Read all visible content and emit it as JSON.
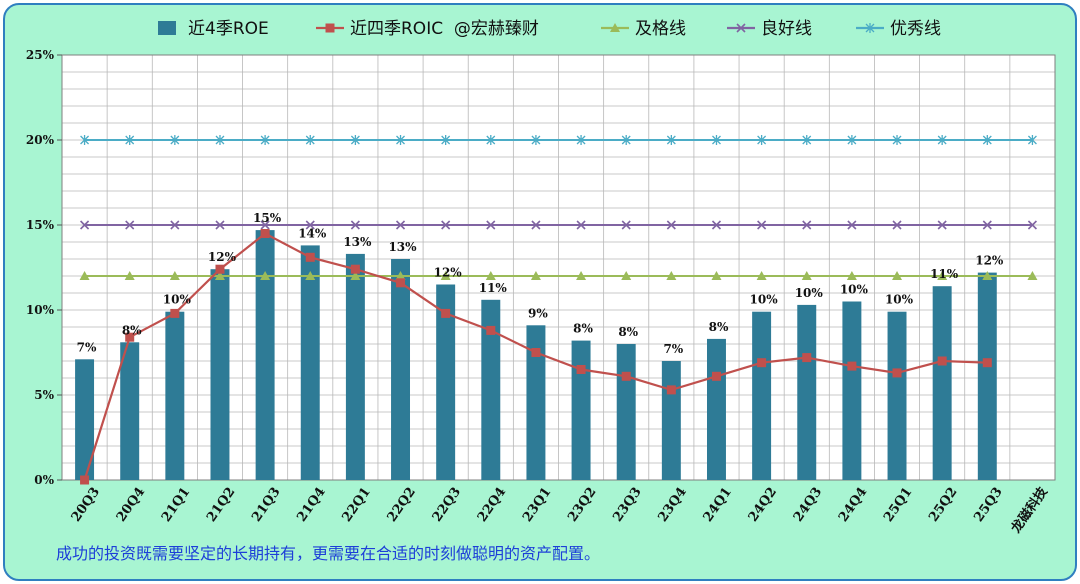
{
  "footnote": "成功的投资既需要坚定的长期持有，更需要在合适的时刻做聪明的资产配置。",
  "colors": {
    "background": "#a8f5d2",
    "plot_area": "#ffffff",
    "roe_bar": "#2e7b96",
    "roic_line": "#c0504d",
    "pass_line": "#9bbb59",
    "good_line": "#8064a2",
    "excellent_line": "#4bacc6"
  },
  "chart_data": {
    "type": "bar",
    "title": "",
    "xlabel": "",
    "ylabel": "",
    "ylim": [
      0,
      25
    ],
    "ytick_labels": [
      "0%",
      "5%",
      "10%",
      "15%",
      "20%",
      "25%"
    ],
    "grid": true,
    "legend_position": "top",
    "categories": [
      "20Q3",
      "20Q4",
      "21Q1",
      "21Q2",
      "21Q3",
      "21Q4",
      "22Q1",
      "22Q2",
      "22Q3",
      "22Q4",
      "23Q1",
      "23Q2",
      "23Q3",
      "23Q4",
      "24Q1",
      "24Q2",
      "24Q3",
      "24Q4",
      "25Q1",
      "25Q2",
      "25Q3",
      "龙磁科技"
    ],
    "series": [
      {
        "name": "近4季ROE",
        "type": "bar",
        "values": [
          7.1,
          8.1,
          9.9,
          12.4,
          14.7,
          13.8,
          13.3,
          13.0,
          11.5,
          10.6,
          9.1,
          8.2,
          8.0,
          7.0,
          8.3,
          9.9,
          10.3,
          10.5,
          9.9,
          11.4,
          12.2,
          null
        ],
        "data_labels": [
          "7%",
          "8%",
          "10%",
          "12%",
          "15%",
          "14%",
          "13%",
          "13%",
          "12%",
          "11%",
          "9%",
          "8%",
          "8%",
          "7%",
          "8%",
          "10%",
          "10%",
          "10%",
          "10%",
          "11%",
          "12%",
          ""
        ]
      },
      {
        "name": "近四季ROIC  @宏赫臻财",
        "type": "line",
        "marker": "square",
        "values": [
          0.0,
          8.4,
          9.8,
          12.4,
          14.5,
          13.1,
          12.4,
          11.6,
          9.8,
          8.8,
          7.5,
          6.5,
          6.1,
          5.3,
          6.1,
          6.9,
          7.2,
          6.7,
          6.3,
          7.0,
          6.9,
          null
        ]
      },
      {
        "name": "及格线",
        "type": "line",
        "marker": "triangle",
        "values": [
          12,
          12,
          12,
          12,
          12,
          12,
          12,
          12,
          12,
          12,
          12,
          12,
          12,
          12,
          12,
          12,
          12,
          12,
          12,
          12,
          12,
          12
        ]
      },
      {
        "name": "良好线",
        "type": "line",
        "marker": "x",
        "values": [
          15,
          15,
          15,
          15,
          15,
          15,
          15,
          15,
          15,
          15,
          15,
          15,
          15,
          15,
          15,
          15,
          15,
          15,
          15,
          15,
          15,
          15
        ]
      },
      {
        "name": "优秀线",
        "type": "line",
        "marker": "star",
        "values": [
          20,
          20,
          20,
          20,
          20,
          20,
          20,
          20,
          20,
          20,
          20,
          20,
          20,
          20,
          20,
          20,
          20,
          20,
          20,
          20,
          20,
          20
        ]
      }
    ]
  }
}
